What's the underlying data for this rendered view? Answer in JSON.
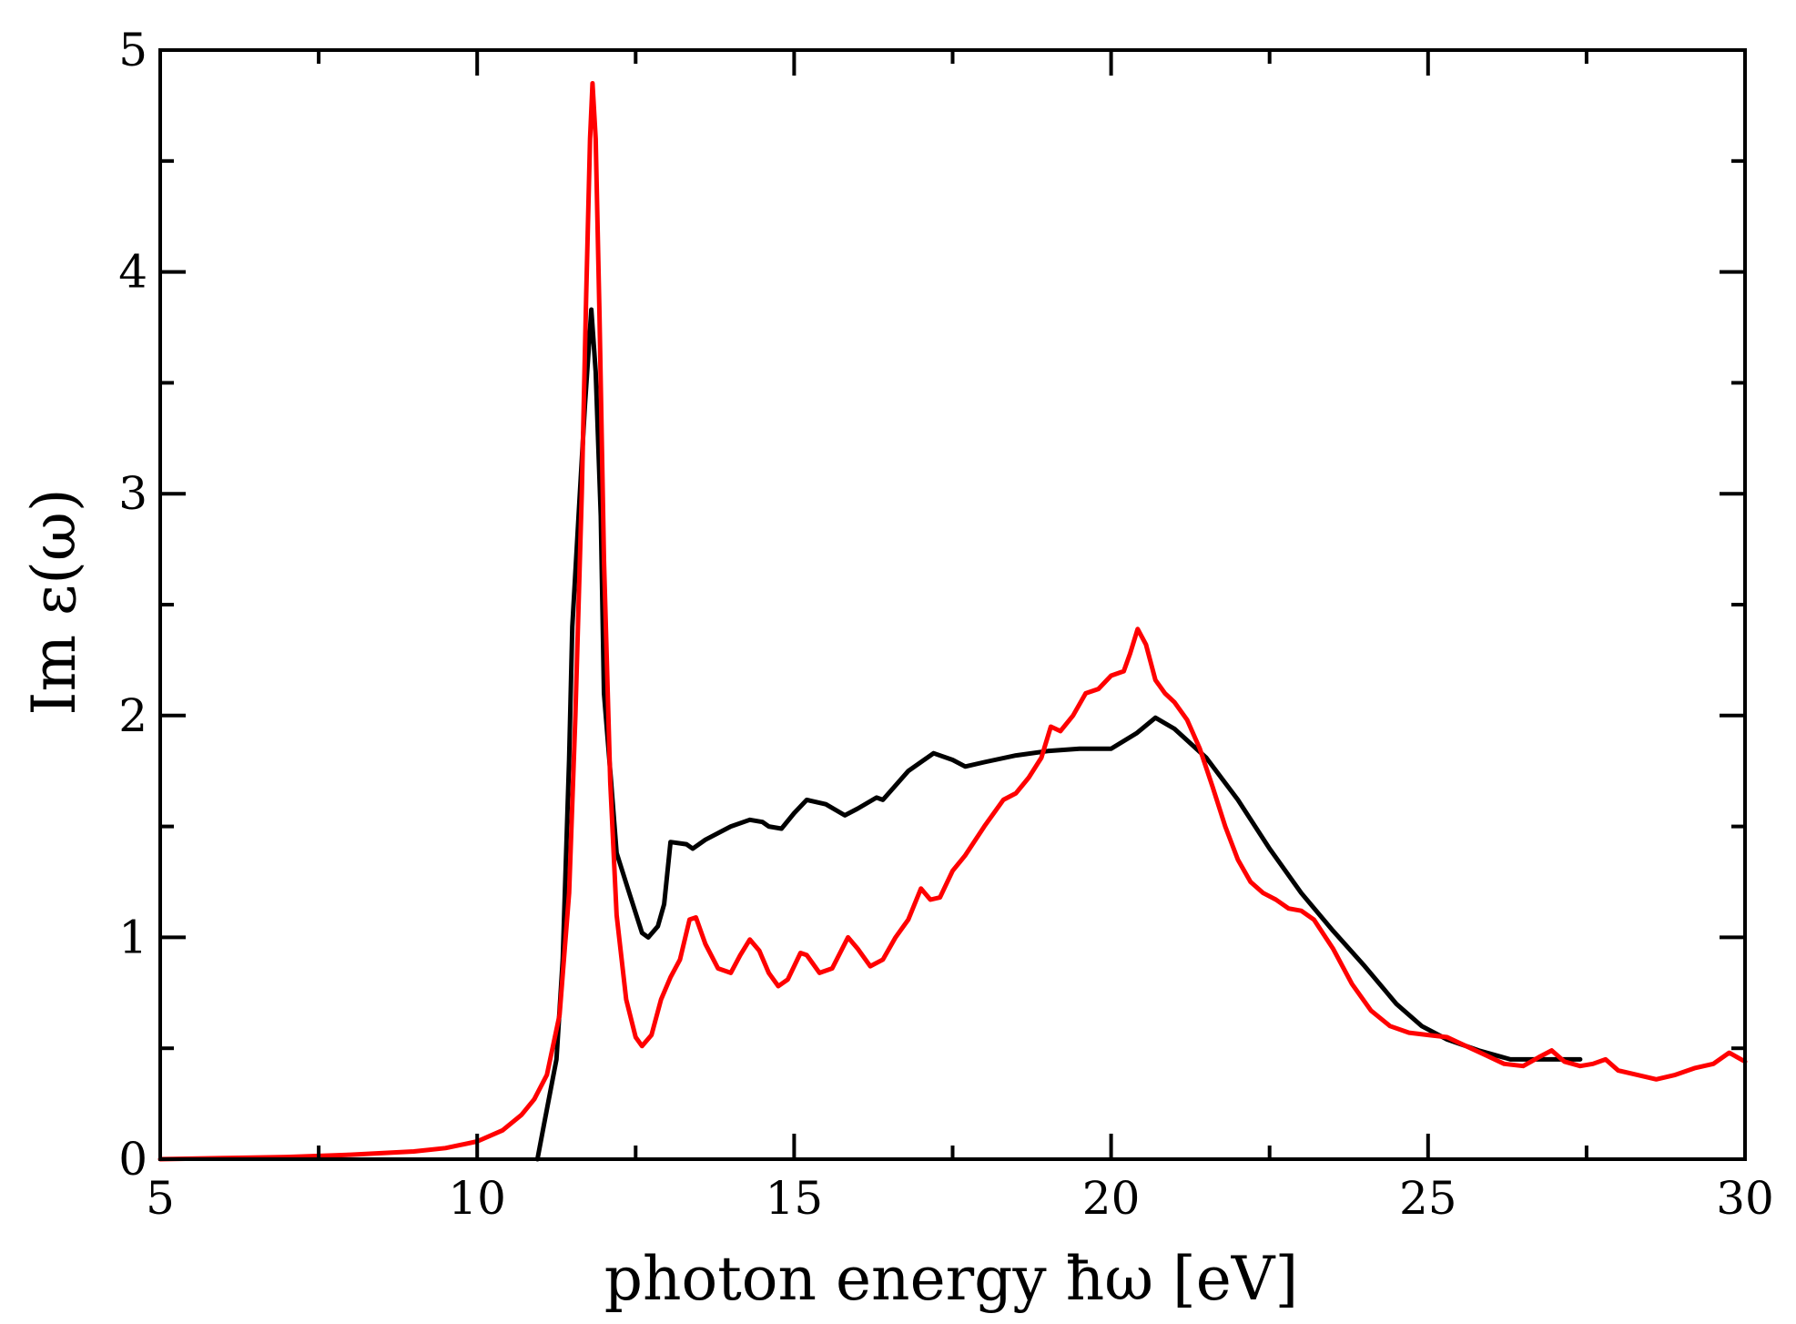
{
  "chart_data": {
    "type": "line",
    "title": "",
    "xlabel": "photon energy ħω [eV]",
    "ylabel": "Im ε(ω)",
    "xlim": [
      5,
      30
    ],
    "ylim": [
      0,
      5
    ],
    "grid": false,
    "legend": "none",
    "x_ticks": [
      {
        "value": 5,
        "label": "5"
      },
      {
        "value": 10,
        "label": "10"
      },
      {
        "value": 15,
        "label": "15"
      },
      {
        "value": 20,
        "label": "20"
      },
      {
        "value": 25,
        "label": "25"
      },
      {
        "value": 30,
        "label": "30"
      }
    ],
    "y_ticks": [
      {
        "value": 0,
        "label": "0"
      },
      {
        "value": 1,
        "label": "1"
      },
      {
        "value": 2,
        "label": "2"
      },
      {
        "value": 3,
        "label": "3"
      },
      {
        "value": 4,
        "label": "4"
      },
      {
        "value": 5,
        "label": "5"
      }
    ],
    "series": [
      {
        "name": "black",
        "color": "#000000",
        "points": [
          [
            10.95,
            0.0
          ],
          [
            11.05,
            0.15
          ],
          [
            11.25,
            0.45
          ],
          [
            11.35,
            0.9
          ],
          [
            11.45,
            1.8
          ],
          [
            11.5,
            2.4
          ],
          [
            11.6,
            2.9
          ],
          [
            11.7,
            3.4
          ],
          [
            11.8,
            3.83
          ],
          [
            11.87,
            3.55
          ],
          [
            11.95,
            2.9
          ],
          [
            12.0,
            2.1
          ],
          [
            12.1,
            1.75
          ],
          [
            12.2,
            1.38
          ],
          [
            12.4,
            1.2
          ],
          [
            12.6,
            1.02
          ],
          [
            12.7,
            1.0
          ],
          [
            12.85,
            1.05
          ],
          [
            12.95,
            1.15
          ],
          [
            13.05,
            1.43
          ],
          [
            13.3,
            1.42
          ],
          [
            13.4,
            1.4
          ],
          [
            13.6,
            1.44
          ],
          [
            14.0,
            1.5
          ],
          [
            14.3,
            1.53
          ],
          [
            14.5,
            1.52
          ],
          [
            14.6,
            1.5
          ],
          [
            14.8,
            1.49
          ],
          [
            15.0,
            1.56
          ],
          [
            15.2,
            1.62
          ],
          [
            15.5,
            1.6
          ],
          [
            15.8,
            1.55
          ],
          [
            16.0,
            1.58
          ],
          [
            16.3,
            1.63
          ],
          [
            16.4,
            1.62
          ],
          [
            16.8,
            1.75
          ],
          [
            17.2,
            1.83
          ],
          [
            17.5,
            1.8
          ],
          [
            17.7,
            1.77
          ],
          [
            18.0,
            1.79
          ],
          [
            18.5,
            1.82
          ],
          [
            19.0,
            1.84
          ],
          [
            19.5,
            1.85
          ],
          [
            20.0,
            1.85
          ],
          [
            20.4,
            1.92
          ],
          [
            20.7,
            1.99
          ],
          [
            21.0,
            1.94
          ],
          [
            21.5,
            1.81
          ],
          [
            22.0,
            1.62
          ],
          [
            22.5,
            1.4
          ],
          [
            23.0,
            1.2
          ],
          [
            23.5,
            1.03
          ],
          [
            24.0,
            0.87
          ],
          [
            24.5,
            0.7
          ],
          [
            24.9,
            0.6
          ],
          [
            25.3,
            0.54
          ],
          [
            25.8,
            0.49
          ],
          [
            26.3,
            0.45
          ],
          [
            26.8,
            0.45
          ],
          [
            27.4,
            0.45
          ]
        ]
      },
      {
        "name": "red",
        "color": "#ff0000",
        "points": [
          [
            5.0,
            0.0
          ],
          [
            6.0,
            0.005
          ],
          [
            7.0,
            0.01
          ],
          [
            8.0,
            0.02
          ],
          [
            9.0,
            0.035
          ],
          [
            9.5,
            0.05
          ],
          [
            10.0,
            0.08
          ],
          [
            10.4,
            0.13
          ],
          [
            10.7,
            0.2
          ],
          [
            10.9,
            0.27
          ],
          [
            11.1,
            0.38
          ],
          [
            11.3,
            0.65
          ],
          [
            11.45,
            1.2
          ],
          [
            11.55,
            2.0
          ],
          [
            11.65,
            3.0
          ],
          [
            11.72,
            3.9
          ],
          [
            11.78,
            4.6
          ],
          [
            11.82,
            4.85
          ],
          [
            11.87,
            4.6
          ],
          [
            11.93,
            3.8
          ],
          [
            12.0,
            2.7
          ],
          [
            12.1,
            1.7
          ],
          [
            12.2,
            1.1
          ],
          [
            12.35,
            0.72
          ],
          [
            12.5,
            0.55
          ],
          [
            12.6,
            0.51
          ],
          [
            12.75,
            0.56
          ],
          [
            12.9,
            0.72
          ],
          [
            13.05,
            0.82
          ],
          [
            13.2,
            0.9
          ],
          [
            13.35,
            1.08
          ],
          [
            13.45,
            1.09
          ],
          [
            13.6,
            0.97
          ],
          [
            13.8,
            0.86
          ],
          [
            14.0,
            0.84
          ],
          [
            14.15,
            0.92
          ],
          [
            14.3,
            0.99
          ],
          [
            14.45,
            0.94
          ],
          [
            14.6,
            0.84
          ],
          [
            14.75,
            0.78
          ],
          [
            14.9,
            0.81
          ],
          [
            15.1,
            0.93
          ],
          [
            15.2,
            0.92
          ],
          [
            15.4,
            0.84
          ],
          [
            15.6,
            0.86
          ],
          [
            15.85,
            1.0
          ],
          [
            16.0,
            0.95
          ],
          [
            16.2,
            0.87
          ],
          [
            16.4,
            0.9
          ],
          [
            16.6,
            1.0
          ],
          [
            16.8,
            1.08
          ],
          [
            17.0,
            1.22
          ],
          [
            17.15,
            1.17
          ],
          [
            17.3,
            1.18
          ],
          [
            17.5,
            1.3
          ],
          [
            17.7,
            1.37
          ],
          [
            18.0,
            1.5
          ],
          [
            18.3,
            1.62
          ],
          [
            18.5,
            1.65
          ],
          [
            18.7,
            1.72
          ],
          [
            18.9,
            1.81
          ],
          [
            19.05,
            1.95
          ],
          [
            19.2,
            1.93
          ],
          [
            19.4,
            2.0
          ],
          [
            19.6,
            2.1
          ],
          [
            19.8,
            2.12
          ],
          [
            20.0,
            2.18
          ],
          [
            20.2,
            2.2
          ],
          [
            20.3,
            2.28
          ],
          [
            20.42,
            2.39
          ],
          [
            20.55,
            2.32
          ],
          [
            20.7,
            2.16
          ],
          [
            20.85,
            2.1
          ],
          [
            21.0,
            2.06
          ],
          [
            21.2,
            1.98
          ],
          [
            21.4,
            1.85
          ],
          [
            21.6,
            1.68
          ],
          [
            21.8,
            1.5
          ],
          [
            22.0,
            1.35
          ],
          [
            22.2,
            1.25
          ],
          [
            22.4,
            1.2
          ],
          [
            22.6,
            1.17
          ],
          [
            22.8,
            1.13
          ],
          [
            23.0,
            1.12
          ],
          [
            23.2,
            1.08
          ],
          [
            23.5,
            0.95
          ],
          [
            23.8,
            0.79
          ],
          [
            24.1,
            0.67
          ],
          [
            24.4,
            0.6
          ],
          [
            24.7,
            0.57
          ],
          [
            25.0,
            0.56
          ],
          [
            25.3,
            0.55
          ],
          [
            25.6,
            0.51
          ],
          [
            25.9,
            0.47
          ],
          [
            26.2,
            0.43
          ],
          [
            26.5,
            0.42
          ],
          [
            26.75,
            0.46
          ],
          [
            26.95,
            0.49
          ],
          [
            27.15,
            0.44
          ],
          [
            27.4,
            0.42
          ],
          [
            27.6,
            0.43
          ],
          [
            27.8,
            0.45
          ],
          [
            28.0,
            0.4
          ],
          [
            28.3,
            0.38
          ],
          [
            28.6,
            0.36
          ],
          [
            28.9,
            0.38
          ],
          [
            29.2,
            0.41
          ],
          [
            29.5,
            0.43
          ],
          [
            29.75,
            0.48
          ],
          [
            30.0,
            0.44
          ]
        ]
      }
    ]
  }
}
